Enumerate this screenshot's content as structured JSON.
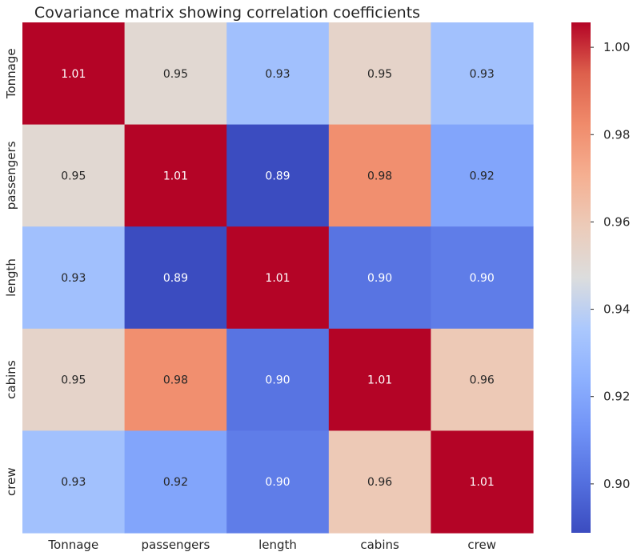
{
  "chart_data": {
    "type": "heatmap",
    "title": "Covariance matrix showing correlation coefficients",
    "x_labels": [
      "Tonnage",
      "passengers",
      "length",
      "cabins",
      "crew"
    ],
    "y_labels": [
      "Tonnage",
      "passengers",
      "length",
      "cabins",
      "crew"
    ],
    "values": [
      [
        1.01,
        0.95,
        0.93,
        0.95,
        0.93
      ],
      [
        0.95,
        1.01,
        0.89,
        0.98,
        0.92
      ],
      [
        0.93,
        0.89,
        1.01,
        0.9,
        0.9
      ],
      [
        0.95,
        0.98,
        0.9,
        1.01,
        0.96
      ],
      [
        0.93,
        0.92,
        0.9,
        0.96,
        1.01
      ]
    ],
    "cell_values": [
      [
        1.0057,
        0.9507,
        0.9316,
        0.9539,
        0.9322
      ],
      [
        0.9507,
        1.0057,
        0.8888,
        0.9811,
        0.9194
      ],
      [
        0.9316,
        0.8888,
        1.0057,
        0.902,
        0.905
      ],
      [
        0.9539,
        0.9811,
        0.902,
        1.0057,
        0.9598
      ],
      [
        0.9322,
        0.9194,
        0.905,
        0.9598,
        1.0057
      ]
    ],
    "colormap": "coolwarm",
    "color_range": [
      0.8888,
      1.0057
    ],
    "colorbar_ticks": [
      "0.90",
      "0.92",
      "0.94",
      "0.96",
      "0.98",
      "1.00"
    ],
    "annotation_format": "0.00"
  }
}
